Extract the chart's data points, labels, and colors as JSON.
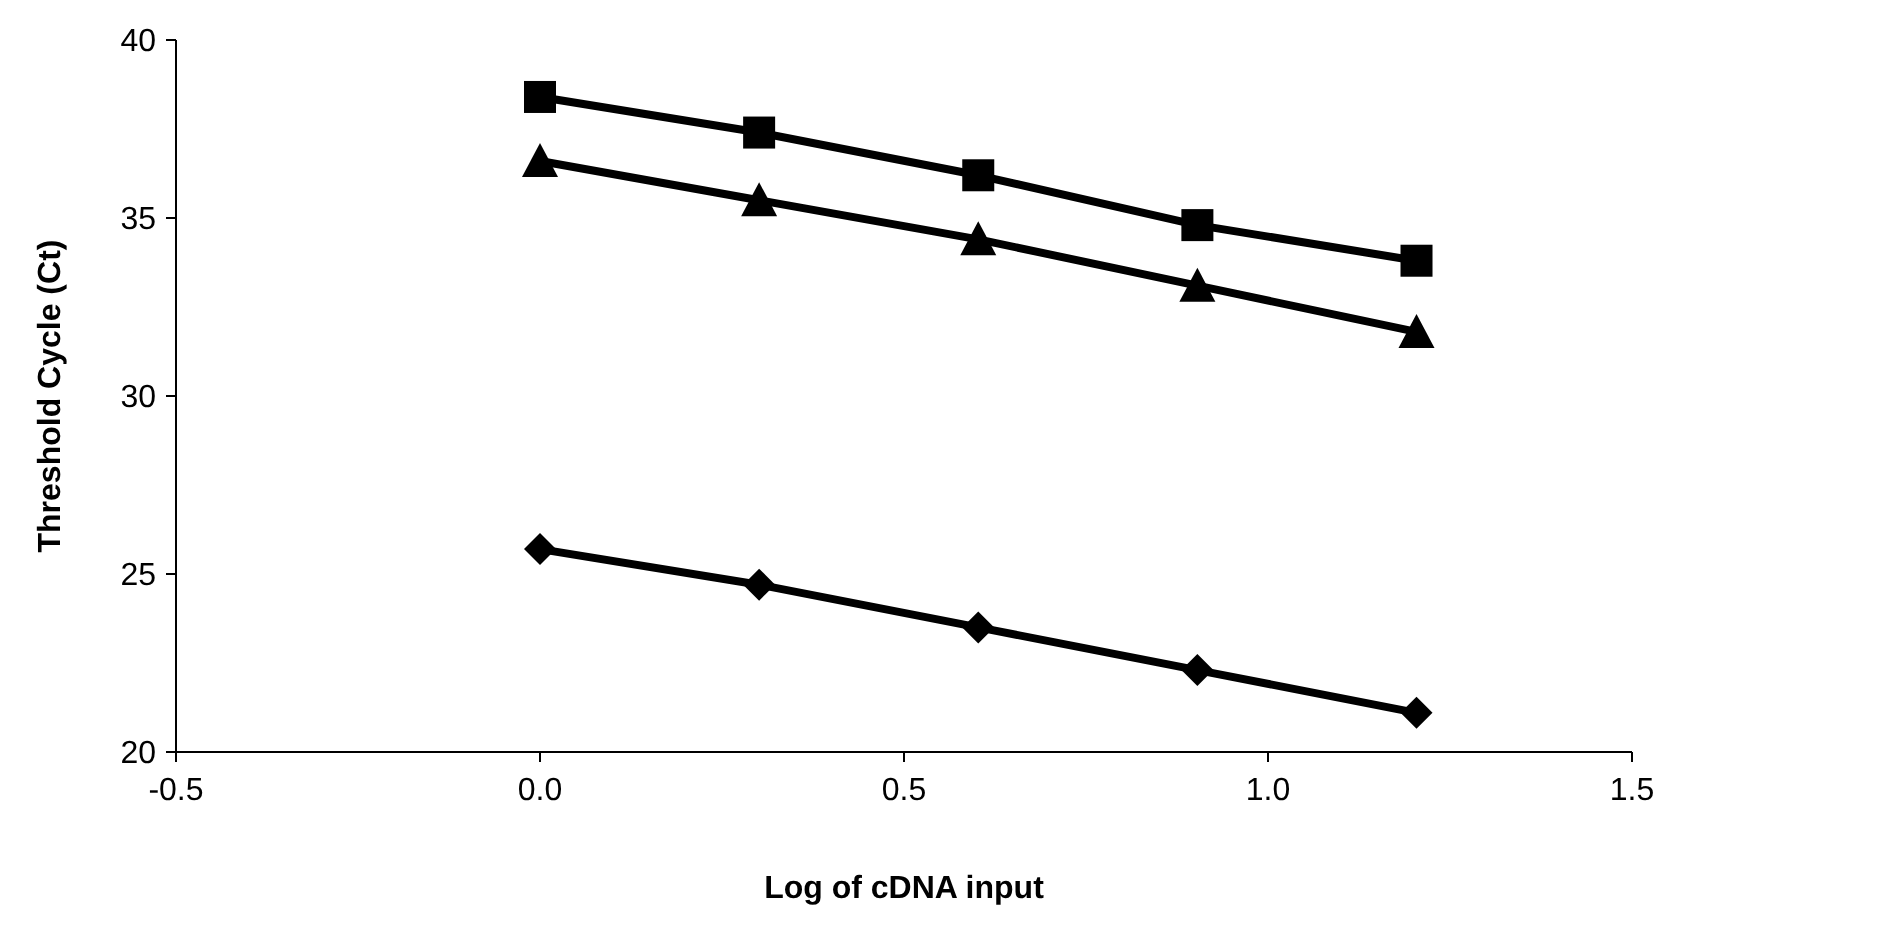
{
  "chart_data": {
    "type": "line",
    "xlabel": "Log of cDNA input",
    "ylabel": "Threshold Cycle (Ct)",
    "x": [
      0,
      0.301,
      0.602,
      0.903,
      1.204
    ],
    "series": [
      {
        "color": "#000000",
        "marker": "square",
        "values": [
          38.4,
          37.4,
          36.2,
          34.8,
          33.8
        ]
      },
      {
        "color": "#000000",
        "marker": "triangle",
        "values": [
          36.6,
          35.5,
          34.4,
          33.1,
          31.8
        ]
      },
      {
        "color": "#000000",
        "marker": "diamond",
        "values": [
          25.7,
          24.7,
          23.5,
          22.3,
          21.1
        ]
      }
    ],
    "xlim": [
      -0.5,
      1.5
    ],
    "xticks": [
      -0.5,
      {
        "value": 0,
        "label": "0.0"
      },
      0.5,
      {
        "value": 1,
        "label": "1.0"
      },
      1.5
    ],
    "ylim": [
      20,
      40
    ],
    "yticks": [
      20,
      25,
      30,
      35,
      40
    ],
    "line_style": "solid"
  }
}
